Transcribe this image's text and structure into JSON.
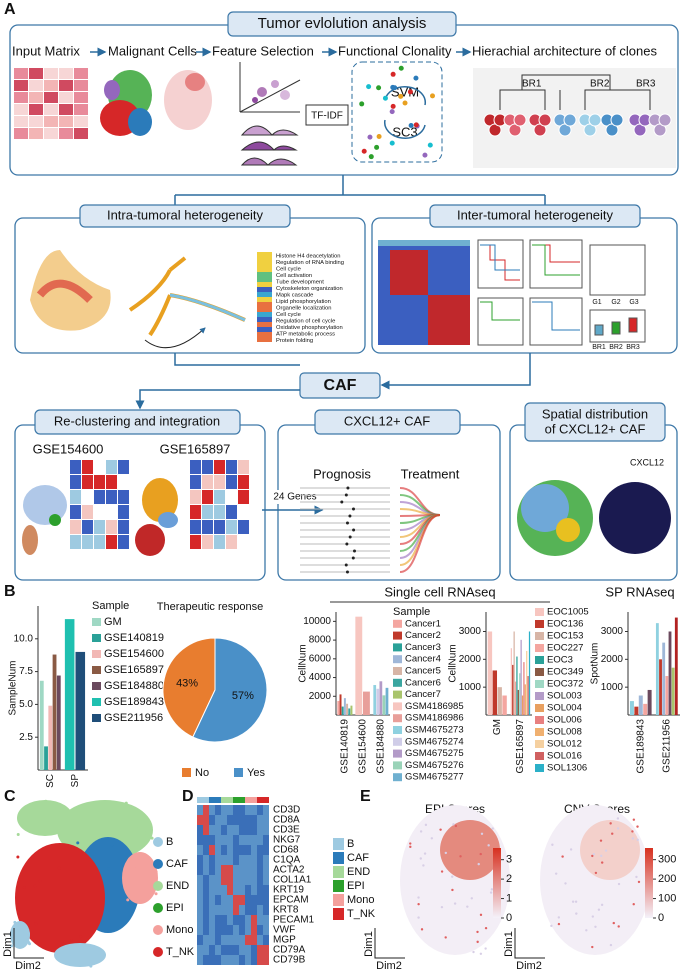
{
  "panel_a": {
    "label": "A",
    "title": "Tumor evlolution analysis",
    "steps": [
      "Input Matrix",
      "Malignant Cells",
      "Feature Selection",
      "Functional Clonality",
      "Hierachial architecture of clones"
    ],
    "tfidf": "TF-IDF",
    "svm": "SVM",
    "sc3": "SC3",
    "branches": [
      "BR1",
      "BR2",
      "BR3"
    ],
    "intra": {
      "title": "Intra-tumoral heterogeneity",
      "terms": [
        "Histone H4 deacetylation",
        "Regulation of RNA binding",
        "Cell cycle",
        "Cell activation",
        "Tube development",
        "Cytoskeleton organization",
        "Mapk cascade",
        "Lipid phosphorylation",
        "Organelle localization",
        "Cell cycle",
        "Regulation of cell cycle",
        "Oxidative phosphorylation",
        "ATP metabolic process",
        "Protein folding"
      ]
    },
    "inter": {
      "title": "Inter-tumoral heterogeneity",
      "groups": [
        "G1",
        "G2",
        "G3"
      ],
      "branches": [
        "BR1",
        "BR2",
        "BR3"
      ]
    },
    "caf": "CAF",
    "recluster": {
      "title": "Re-clustering and integration",
      "datasets": [
        "GSE154600",
        "GSE165897"
      ]
    },
    "genes_label": "24 Genes",
    "cxcl12": {
      "title": "CXCL12+ CAF",
      "prognosis": "Prognosis",
      "treatment": "Treatment"
    },
    "spatial": {
      "title": [
        "Spatial distribution",
        "of CXCL12+ CAF"
      ],
      "gene": "CXCL12"
    }
  },
  "panel_b": {
    "label": "B",
    "group_labels": [
      "Single cell RNAseq",
      "SP RNAseq"
    ],
    "charts": [
      {
        "type": "bar",
        "ylabel": "SampleNum",
        "legend_title": "Sample",
        "categories": [
          "SC",
          "SP"
        ],
        "ylim": [
          0,
          12.5
        ],
        "yticks": [
          2.5,
          {
            "value": 5,
            "label": "5.0"
          },
          7.5,
          {
            "value": 10,
            "label": "10.0"
          }
        ],
        "series": [
          {
            "name": "GM",
            "color": "#9fd8c4",
            "values": [
              6.8,
              null
            ]
          },
          {
            "name": "GSE140819",
            "color": "#2aa198",
            "values": [
              1.8,
              null
            ]
          },
          {
            "name": "GSE154600",
            "color": "#f2b8b5",
            "values": [
              4.9,
              null
            ]
          },
          {
            "name": "GSE165897",
            "color": "#8a5a44",
            "values": [
              8.8,
              null
            ]
          },
          {
            "name": "GSE184880",
            "color": "#6b4a5e",
            "values": [
              7.2,
              null
            ]
          },
          {
            "name": "GSE189843",
            "color": "#1fc0b0",
            "values": [
              null,
              11.5
            ]
          },
          {
            "name": "GSE211956",
            "color": "#1f4e79",
            "values": [
              null,
              9
            ]
          }
        ]
      },
      {
        "type": "pie",
        "title": "Therapeutic response",
        "categories": [
          "No",
          "Yes"
        ],
        "values": [
          43,
          57
        ],
        "value_labels": [
          "43%",
          "57%"
        ],
        "colors": [
          "#e87d2f",
          "#4a90c8"
        ]
      },
      {
        "type": "bar",
        "ylabel": "CellNum",
        "legend_title": "Sample",
        "categories": [
          "GSE140819",
          "GSE154600",
          "GSE184880"
        ],
        "ylim": [
          0,
          11000
        ],
        "yticks": [
          2000,
          4000,
          6000,
          8000,
          10000
        ],
        "series": [
          {
            "name": "Cancer1",
            "color": "#f4a6a0",
            "values": [
              1500,
              null,
              null
            ]
          },
          {
            "name": "Cancer2",
            "color": "#c0392b",
            "values": [
              2200,
              null,
              null
            ]
          },
          {
            "name": "Cancer3",
            "color": "#2aa198",
            "values": [
              900,
              null,
              null
            ]
          },
          {
            "name": "Cancer4",
            "color": "#9fb7d8",
            "values": [
              1800,
              null,
              null
            ]
          },
          {
            "name": "Cancer5",
            "color": "#d7b5a6",
            "values": [
              1200,
              null,
              null
            ]
          },
          {
            "name": "Cancer6",
            "color": "#3aa6a0",
            "values": [
              700,
              null,
              null
            ]
          },
          {
            "name": "Cancer7",
            "color": "#a9c46c",
            "values": [
              1000,
              null,
              null
            ]
          },
          {
            "name": "GSM4186985",
            "color": "#f7c6c0",
            "values": [
              null,
              10500,
              null
            ]
          },
          {
            "name": "GSM4186986",
            "color": "#e89f9a",
            "values": [
              null,
              2500,
              null
            ]
          },
          {
            "name": "GSM4675273",
            "color": "#8fd1e0",
            "values": [
              null,
              null,
              3200
            ]
          },
          {
            "name": "GSM4675274",
            "color": "#d0cde8",
            "values": [
              null,
              null,
              2800
            ]
          },
          {
            "name": "GSM4675275",
            "color": "#b39bc8",
            "values": [
              null,
              null,
              3600
            ]
          },
          {
            "name": "GSM4675276",
            "color": "#9ad3b8",
            "values": [
              null,
              null,
              2100
            ]
          },
          {
            "name": "GSM4675277",
            "color": "#6fb0d0",
            "values": [
              null,
              null,
              2900
            ]
          }
        ]
      },
      {
        "type": "bar",
        "ylabel": "CellNum",
        "categories": [
          "GM",
          "GSE165897"
        ],
        "ylim": [
          0,
          3700
        ],
        "yticks": [
          1000,
          2000,
          3000
        ],
        "series": [
          {
            "name": "EOC1005",
            "color": "#f7c6c0",
            "values": [
              3000,
              2400
            ]
          },
          {
            "name": "EOC136",
            "color": "#c0392b",
            "values": [
              1600,
              1800
            ]
          },
          {
            "name": "EOC153",
            "color": "#d7b5a6",
            "values": [
              1000,
              3000
            ]
          },
          {
            "name": "EOC227",
            "color": "#f4a6a0",
            "values": [
              700,
              1200
            ]
          },
          {
            "name": "EOC3",
            "color": "#2aa198",
            "values": [
              null,
              2100
            ]
          },
          {
            "name": "EOC349",
            "color": "#8a5a44",
            "values": [
              null,
              900
            ]
          },
          {
            "name": "EOC372",
            "color": "#9fd8c4",
            "values": [
              null,
              1500
            ]
          },
          {
            "name": "SOL003",
            "color": "#b39bc8",
            "values": [
              null,
              2700
            ]
          },
          {
            "name": "SOL004",
            "color": "#e8a060",
            "values": [
              null,
              700
            ]
          },
          {
            "name": "SOL006",
            "color": "#e88080",
            "values": [
              null,
              1900
            ]
          },
          {
            "name": "SOL008",
            "color": "#f0b070",
            "values": [
              null,
              1100
            ]
          },
          {
            "name": "SOL012",
            "color": "#f5d0a0",
            "values": [
              null,
              2300
            ]
          },
          {
            "name": "SOL016",
            "color": "#d06060",
            "values": [
              null,
              1400
            ]
          },
          {
            "name": "SOL1306",
            "color": "#2bb0c8",
            "values": [
              null,
              3000
            ]
          }
        ]
      },
      {
        "type": "bar",
        "ylabel": "SpotNum",
        "categories": [
          "GSE189843",
          "GSE211956"
        ],
        "ylim": [
          0,
          3700
        ],
        "yticks": [
          1000,
          2000,
          3000
        ],
        "series": [
          {
            "color": "#8fd1e0",
            "values": [
              500,
              3300
            ]
          },
          {
            "color": "#c0392b",
            "values": [
              300,
              2000
            ]
          },
          {
            "color": "#9fb7d8",
            "values": [
              700,
              2600
            ]
          },
          {
            "color": "#f4a6a0",
            "values": [
              400,
              1400
            ]
          },
          {
            "color": "#6b4a5e",
            "values": [
              900,
              3000
            ]
          },
          {
            "color": "#a9c46c",
            "values": [
              null,
              1700
            ]
          },
          {
            "color": "#b22222",
            "values": [
              null,
              3500
            ]
          }
        ]
      }
    ]
  },
  "panel_c": {
    "label": "C",
    "legend": [
      {
        "name": "B",
        "color": "#9ecae1"
      },
      {
        "name": "CAF",
        "color": "#2b7bba"
      },
      {
        "name": "END",
        "color": "#a6d99a"
      },
      {
        "name": "EPI",
        "color": "#2ca02c"
      },
      {
        "name": "Mono",
        "color": "#f4a09c"
      },
      {
        "name": "T_NK",
        "color": "#d62728"
      }
    ],
    "axes": [
      "Dim1",
      "Dim2"
    ]
  },
  "panel_d": {
    "label": "D",
    "genes": [
      "CD3D",
      "CD8A",
      "CD3E",
      "NKG7",
      "CD68",
      "C1QA",
      "ACTA2",
      "COL1A1",
      "KRT19",
      "EPCAM",
      "KRT8",
      "PECAM1",
      "VWF",
      "MGP",
      "CD79A",
      "CD79B"
    ]
  },
  "panel_e": {
    "label": "E",
    "axes": [
      "Dim1",
      "Dim2"
    ],
    "plots": [
      {
        "title": "EPI Scores",
        "lim": [
          0,
          3.6
        ],
        "ticks": [
          0,
          1,
          2,
          3
        ]
      },
      {
        "title": "CNV Scores",
        "lim": [
          0,
          360
        ],
        "ticks": [
          0,
          100,
          200,
          300
        ]
      }
    ]
  }
}
